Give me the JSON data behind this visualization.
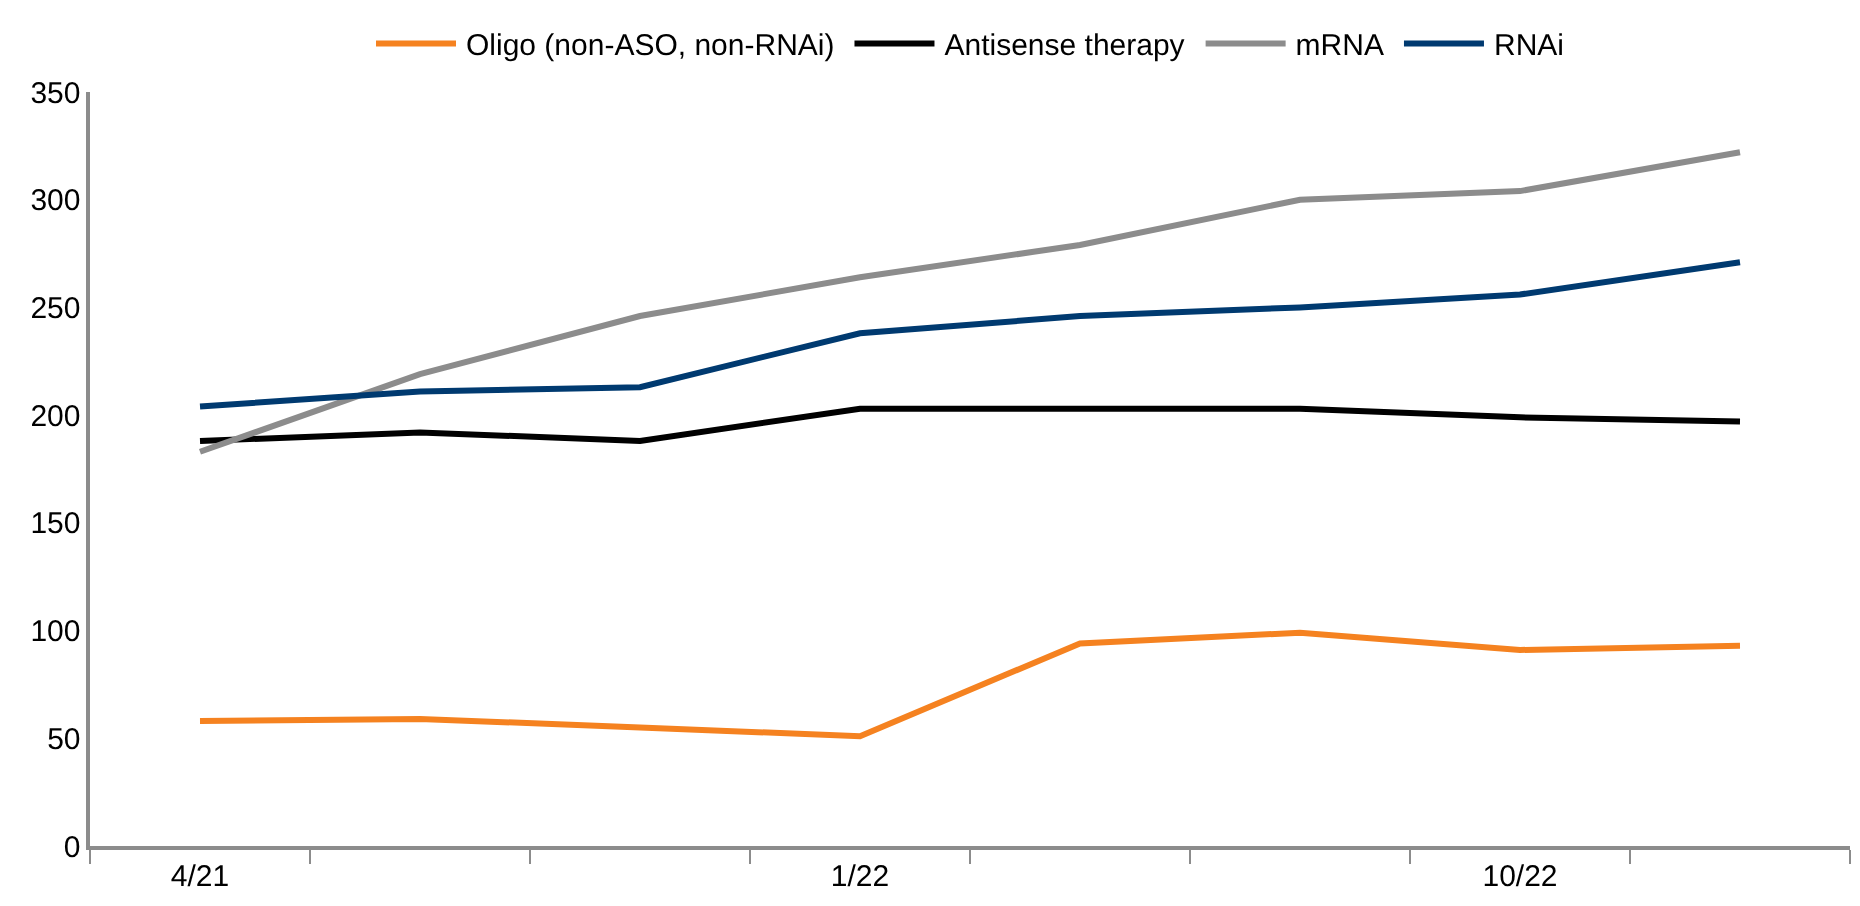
{
  "chart_data": {
    "type": "line",
    "categories": [
      "4/21",
      null,
      null,
      "1/22",
      null,
      null,
      "10/22",
      null
    ],
    "series": [
      {
        "name": "Oligo (non-ASO, non-RNAi)",
        "color": "#f58220",
        "values": [
          58,
          59,
          55,
          51,
          94,
          99,
          91,
          93
        ]
      },
      {
        "name": "Antisense therapy",
        "color": "#000000",
        "values": [
          188,
          192,
          188,
          203,
          203,
          203,
          199,
          197
        ]
      },
      {
        "name": "mRNA",
        "color": "#8c8c8c",
        "values": [
          183,
          219,
          246,
          264,
          279,
          300,
          304,
          322
        ]
      },
      {
        "name": "RNAi",
        "color": "#003a70",
        "values": [
          204,
          211,
          213,
          238,
          246,
          250,
          256,
          271
        ]
      }
    ],
    "ylim": [
      0,
      350
    ],
    "yticks": [
      0,
      50,
      100,
      150,
      200,
      250,
      300,
      350
    ],
    "legend": "top",
    "marker": "none",
    "line_style": "solid"
  }
}
